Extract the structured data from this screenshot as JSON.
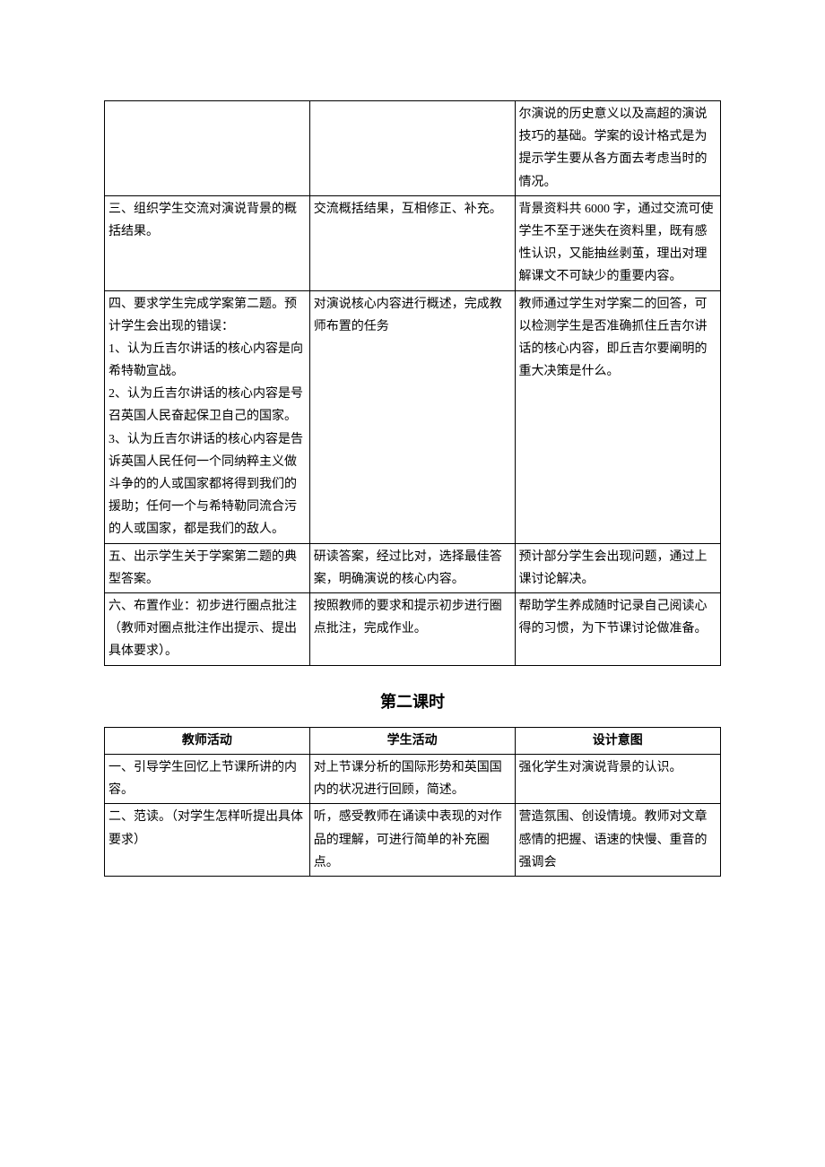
{
  "table1": {
    "rows": [
      {
        "teacher": "",
        "student": "",
        "intent": "尔演说的历史意义以及高超的演说技巧的基础。学案的设计格式是为提示学生要从各方面去考虑当时的情况。"
      },
      {
        "teacher": "三、组织学生交流对演说背景的概括结果。",
        "student": "交流概括结果，互相修正、补充。",
        "intent": "背景资料共 6000 字，通过交流可使学生不至于迷失在资料里，既有感性认识，又能抽丝剥茧，理出对理解课文不可缺少的重要内容。"
      },
      {
        "teacher": "四、要求学生完成学案第二题。预计学生会出现的错误：\n1、认为丘吉尔讲话的核心内容是向希特勒宣战。\n2、认为丘吉尔讲话的核心内容是号召英国人民奋起保卫自己的国家。\n3、认为丘吉尔讲话的核心内容是告诉英国人民任何一个同纳粹主义做斗争的的人或国家都将得到我们的援助；任何一个与希特勒同流合污的人或国家，都是我们的敌人。",
        "student": "对演说核心内容进行概述，完成教师布置的任务",
        "intent": "教师通过学生对学案二的回答，可以检测学生是否准确抓住丘吉尔讲话的核心内容，即丘吉尔要阐明的重大决策是什么。"
      },
      {
        "teacher": "五、出示学生关于学案第二题的典型答案。",
        "student": "研读答案，经过比对，选择最佳答案，明确演说的核心内容。",
        "intent": "预计部分学生会出现问题，通过上课讨论解决。"
      },
      {
        "teacher": "六、布置作业：初步进行圈点批注（教师对圈点批注作出提示、提出具体要求）。",
        "student": "按照教师的要求和提示初步进行圈点批注，完成作业。",
        "intent": "帮助学生养成随时记录自己阅读心得的习惯，为下节课讨论做准备。"
      }
    ]
  },
  "heading2": "第二课时",
  "table2": {
    "headers": {
      "teacher": "教师活动",
      "student": "学生活动",
      "intent": "设计意图"
    },
    "rows": [
      {
        "teacher": "一、引导学生回忆上节课所讲的内容。",
        "student": "对上节课分析的国际形势和英国国内的状况进行回顾，简述。",
        "intent": "强化学生对演说背景的认识。"
      },
      {
        "teacher": "二、范读。（对学生怎样听提出具体要求）",
        "student": "听，感受教师在诵读中表现的对作品的理解，可进行简单的补充圈点。",
        "intent": "营造氛围、创设情境。教师对文章感情的把握、语速的快慢、重音的强调会"
      }
    ]
  }
}
